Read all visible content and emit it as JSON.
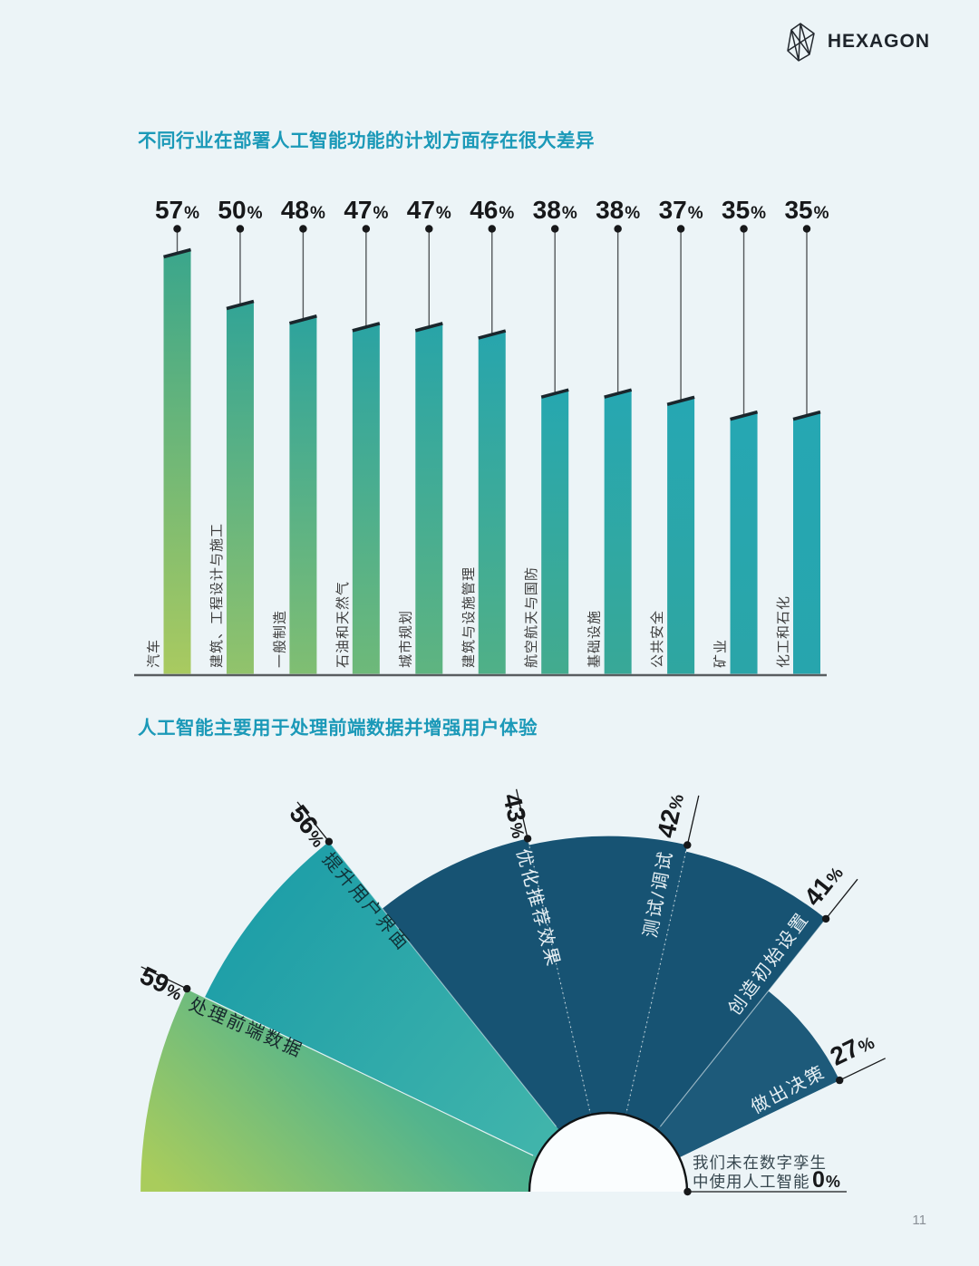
{
  "header": {
    "brand": "HEXAGON"
  },
  "footer": {
    "page_number": "11"
  },
  "page": {
    "background": "#ecf4f7"
  },
  "chart_data": [
    {
      "type": "bar",
      "title": "不同行业在部署人工智能功能的计划方面存在很大差异",
      "title_color": "#1b99b8",
      "unit": "%",
      "xlabel": "",
      "ylabel": "",
      "ylim": [
        0,
        60
      ],
      "grid": false,
      "categories": [
        "汽车",
        "建筑、工程设计与施工",
        "一般制造",
        "石油和天然气",
        "城市规划",
        "建筑与设施管理",
        "航空航天与国防",
        "基础设施",
        "公共安全",
        "矿业",
        "化工和石化"
      ],
      "values": [
        57,
        50,
        48,
        47,
        47,
        46,
        38,
        38,
        37,
        35,
        35
      ],
      "bar_colors_bottom": [
        "#a9ca60",
        "#92c36b",
        "#80be72",
        "#6eb979",
        "#5fb480",
        "#50b087",
        "#43ab8e",
        "#38a897",
        "#2fa6a0",
        "#2aa5a8",
        "#27a5ad"
      ],
      "bar_colors_top": [
        "#3aa68c",
        "#32a496",
        "#2da39d",
        "#2aa3a3",
        "#28a4a8",
        "#27a5ad",
        "#26a7b0",
        "#26a7b2",
        "#26a7b3",
        "#26a7b3",
        "#26a7b3"
      ],
      "bar_top_edge_color": "#1a262c",
      "axis_color": "#595d60",
      "value_label_color": "#17181a"
    },
    {
      "type": "pie",
      "variant": "fan-polar-area",
      "title": "人工智能主要用于处理前端数据并增强用户体验",
      "title_color": "#1b99b8",
      "unit": "%",
      "start_angle_deg": 180,
      "end_angle_deg": 0,
      "inner_radius_px": 87,
      "segments": [
        {
          "label": "处理前端数据",
          "value": 59,
          "color_from": "#a9cc5c",
          "color_to": "#2da2a0",
          "label_color": "#16282c"
        },
        {
          "label": "提升用户界面",
          "value": 56,
          "color_from": "#48b9ac",
          "color_to": "#1f9fa8",
          "label_color": "#103238"
        },
        {
          "label": "优化推荐效果",
          "value": 43,
          "color": "#175373",
          "label_color": "#e6eff3"
        },
        {
          "label": "测试/调试",
          "value": 42,
          "color": "#175373",
          "label_color": "#e6eff3"
        },
        {
          "label": "创造初始设置",
          "value": 41,
          "color": "#175373",
          "label_color": "#e6eff3"
        },
        {
          "label": "做出决策",
          "value": 27,
          "color": "#1d5a7a",
          "label_color": "#e6eff3"
        },
        {
          "label": "我们未在数字孪生中使用人工智能",
          "label_lines": [
            "我们未在数字孪生",
            "中使用人工智能"
          ],
          "value": 0,
          "label_color": "#37474f"
        }
      ]
    }
  ]
}
